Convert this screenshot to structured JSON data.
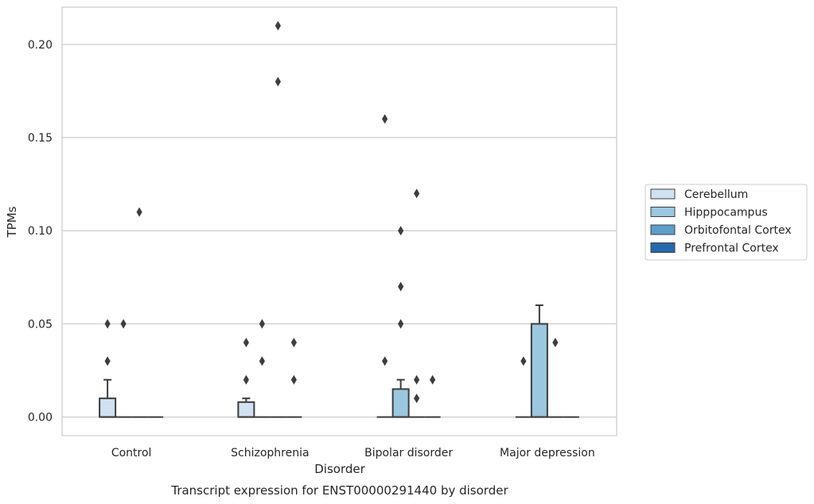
{
  "chart_data": {
    "type": "box",
    "xlabel": "Disorder",
    "ylabel": "TPMs",
    "caption": "Transcript expression for ENST00000291440 by disorder",
    "ylim": [
      -0.01,
      0.22
    ],
    "yticks": [
      0.0,
      0.05,
      0.1,
      0.15,
      0.2
    ],
    "ytick_labels": [
      "0.00",
      "0.05",
      "0.10",
      "0.15",
      "0.20"
    ],
    "grid": "horizontal",
    "legend_position": "right",
    "categories": [
      "Control",
      "Schizophrenia",
      "Bipolar disorder",
      "Major depression"
    ],
    "series": [
      {
        "name": "Cerebellum",
        "color": "#d0e1f2",
        "boxes": [
          {
            "q1": 0.0,
            "median": 0.0,
            "q3": 0.01,
            "whisker_low": 0.0,
            "whisker_high": 0.02,
            "outliers": [
              0.03,
              0.05
            ]
          },
          {
            "q1": 0.0,
            "median": 0.0,
            "q3": 0.008,
            "whisker_low": 0.0,
            "whisker_high": 0.01,
            "outliers": [
              0.02,
              0.04
            ]
          },
          {
            "q1": 0.0,
            "median": 0.0,
            "q3": 0.0,
            "whisker_low": 0.0,
            "whisker_high": 0.0,
            "outliers": [
              0.03,
              0.16
            ]
          },
          {
            "q1": 0.0,
            "median": 0.0,
            "q3": 0.0,
            "whisker_low": 0.0,
            "whisker_high": 0.0,
            "outliers": [
              0.03
            ]
          }
        ]
      },
      {
        "name": "Hipppocampus",
        "color": "#9ac8e0",
        "boxes": [
          {
            "q1": 0.0,
            "median": 0.0,
            "q3": 0.0,
            "whisker_low": 0.0,
            "whisker_high": 0.0,
            "outliers": [
              0.05
            ]
          },
          {
            "q1": 0.0,
            "median": 0.0,
            "q3": 0.0,
            "whisker_low": 0.0,
            "whisker_high": 0.0,
            "outliers": [
              0.03,
              0.05
            ]
          },
          {
            "q1": 0.0,
            "median": 0.0,
            "q3": 0.015,
            "whisker_low": 0.0,
            "whisker_high": 0.02,
            "outliers": [
              0.05,
              0.07,
              0.1
            ]
          },
          {
            "q1": 0.0,
            "median": 0.0,
            "q3": 0.05,
            "whisker_low": 0.0,
            "whisker_high": 0.06,
            "outliers": []
          }
        ]
      },
      {
        "name": "Orbitofontal Cortex",
        "color": "#5a9ecc",
        "boxes": [
          {
            "q1": 0.0,
            "median": 0.0,
            "q3": 0.0,
            "whisker_low": 0.0,
            "whisker_high": 0.0,
            "outliers": [
              0.11
            ]
          },
          {
            "q1": 0.0,
            "median": 0.0,
            "q3": 0.0,
            "whisker_low": 0.0,
            "whisker_high": 0.0,
            "outliers": [
              0.18,
              0.21
            ]
          },
          {
            "q1": 0.0,
            "median": 0.0,
            "q3": 0.0,
            "whisker_low": 0.0,
            "whisker_high": 0.0,
            "outliers": [
              0.01,
              0.02,
              0.12
            ]
          },
          {
            "q1": 0.0,
            "median": 0.0,
            "q3": 0.0,
            "whisker_low": 0.0,
            "whisker_high": 0.0,
            "outliers": [
              0.04
            ]
          }
        ]
      },
      {
        "name": "Prefrontal Cortex",
        "color": "#2469ad",
        "boxes": [
          {
            "q1": 0.0,
            "median": 0.0,
            "q3": 0.0,
            "whisker_low": 0.0,
            "whisker_high": 0.0,
            "outliers": []
          },
          {
            "q1": 0.0,
            "median": 0.0,
            "q3": 0.0,
            "whisker_low": 0.0,
            "whisker_high": 0.0,
            "outliers": [
              0.02,
              0.04
            ]
          },
          {
            "q1": 0.0,
            "median": 0.0,
            "q3": 0.0,
            "whisker_low": 0.0,
            "whisker_high": 0.0,
            "outliers": [
              0.02
            ]
          },
          {
            "q1": 0.0,
            "median": 0.0,
            "q3": 0.0,
            "whisker_low": 0.0,
            "whisker_high": 0.0,
            "outliers": []
          }
        ]
      }
    ]
  }
}
